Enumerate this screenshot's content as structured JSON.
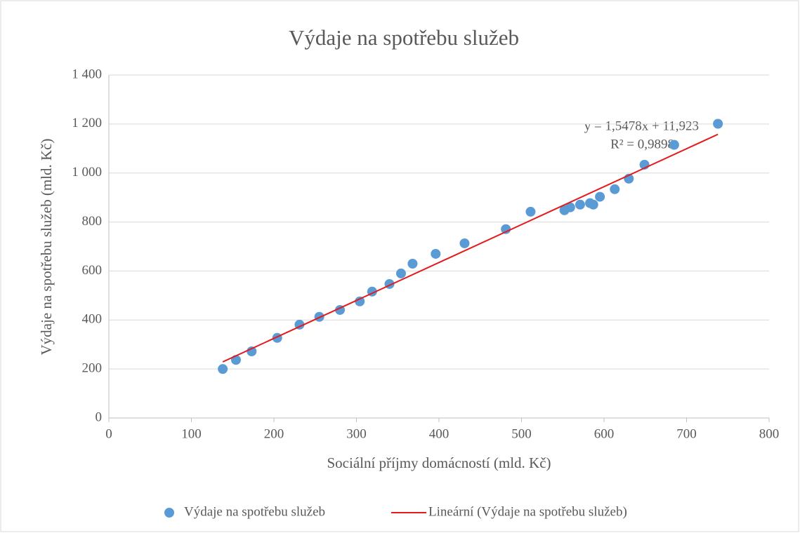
{
  "chart_data": {
    "type": "scatter",
    "title": "Výdaje na spotřebu služeb",
    "x_label": "Sociální příjmy domácností (mld. Kč)",
    "y_label": "Výdaje na spotřebu služeb (mld. Kč)",
    "xlim": [
      0,
      800
    ],
    "ylim": [
      0,
      1400
    ],
    "xticks": [
      0,
      100,
      200,
      300,
      400,
      500,
      600,
      700,
      800
    ],
    "yticks": [
      0,
      200,
      400,
      600,
      800,
      {
        "value": 1000,
        "label": "1 000"
      },
      {
        "value": 1200,
        "label": "1 200"
      },
      {
        "value": 1400,
        "label": "1 400"
      }
    ],
    "grid": true,
    "legend": "bottom",
    "series": [
      {
        "name": "Výdaje na spotřebu služeb",
        "color": "#5b9bd5",
        "x": [
          138,
          154,
          173,
          204,
          231,
          255,
          280,
          304,
          319,
          340,
          354,
          368,
          396,
          431,
          481,
          511,
          552,
          559,
          571,
          583,
          587,
          595,
          613,
          630,
          649,
          685,
          738
        ],
        "values": [
          200,
          237,
          272,
          327,
          381,
          413,
          441,
          476,
          516,
          547,
          590,
          630,
          670,
          713,
          771,
          842,
          848,
          860,
          871,
          877,
          871,
          903,
          934,
          977,
          1034,
          1115,
          1201
        ]
      },
      {
        "name": "Lineární (Výdaje na spotřebu služeb)",
        "color": "#e41a1c",
        "type": "line",
        "x": [
          138,
          738
        ],
        "values": [
          229,
          1158
        ]
      }
    ],
    "annotations": [
      "y = 1,5478x + 11,923",
      "R² = 0,9898"
    ]
  }
}
